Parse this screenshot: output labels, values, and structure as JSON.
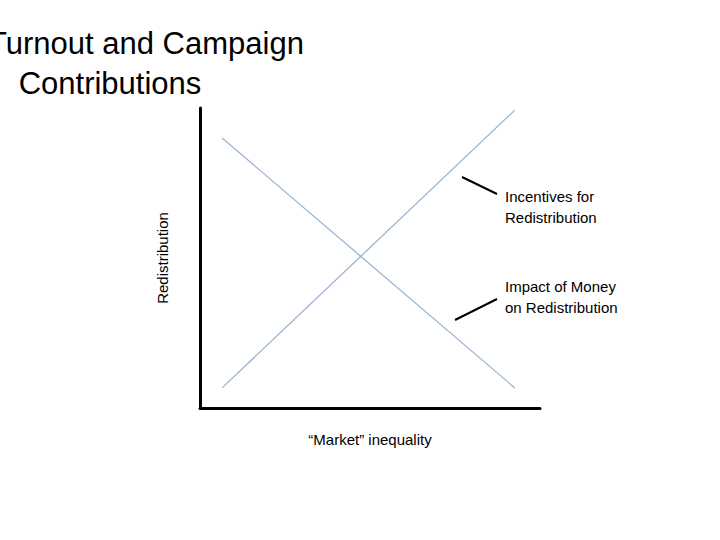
{
  "chart_data": {
    "type": "line",
    "title": "Voter Turnout and Campaign Contributions",
    "x_label": "“Market” inequality",
    "y_label": "Redistribution",
    "xlim": [
      0,
      10
    ],
    "ylim": [
      0,
      10
    ],
    "tick_labels": false,
    "grid": false,
    "series": [
      {
        "name": "Incentives for Redistribution",
        "color": "#9ab5d8",
        "x": [
          0.65,
          9.26
        ],
        "values": [
          0.67,
          9.93
        ]
      },
      {
        "name": "Impact of Money on Redistribution",
        "color": "#9ab5d8",
        "x": [
          0.65,
          9.26
        ],
        "values": [
          9.0,
          0.67
        ]
      }
    ]
  }
}
